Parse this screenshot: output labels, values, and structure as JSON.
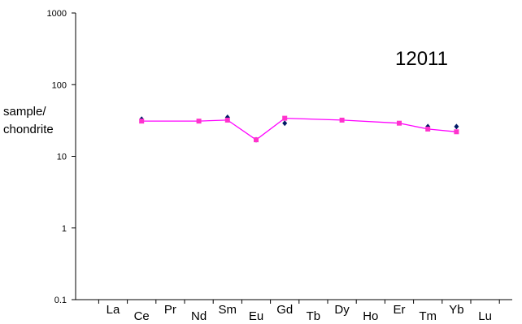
{
  "chart_data": {
    "type": "scatter",
    "title": "",
    "annotation": "12011",
    "ylabel_lines": [
      "sample/",
      "chondrite"
    ],
    "xlabel": "",
    "y_scale": "log",
    "ylim": [
      0.1,
      1000
    ],
    "y_ticks": [
      "1000",
      "100",
      "10",
      "1",
      "0.1"
    ],
    "categories": [
      "La",
      "Ce",
      "Pr",
      "Nd",
      "Sm",
      "Eu",
      "Gd",
      "Tb",
      "Dy",
      "Ho",
      "Er",
      "Tm",
      "Yb",
      "Lu"
    ],
    "grid": false,
    "colors": {
      "line": "#ff00ff",
      "square_marker": "#ff33cc",
      "diamond_marker": "#001a66",
      "axis": "#000000"
    },
    "series": [
      {
        "marker": "diamond",
        "points": [
          {
            "x": "Ce",
            "y": 33
          },
          {
            "x": "Sm",
            "y": 35
          },
          {
            "x": "Eu",
            "y": 17
          },
          {
            "x": "Gd",
            "y": 29
          },
          {
            "x": "Tm",
            "y": 26
          },
          {
            "x": "Yb",
            "y": 26
          }
        ]
      },
      {
        "marker": "square",
        "style": "line",
        "points": [
          {
            "x": "Ce",
            "y": 31
          },
          {
            "x": "Nd",
            "y": 31
          },
          {
            "x": "Sm",
            "y": 32
          },
          {
            "x": "Eu",
            "y": 17
          },
          {
            "x": "Gd",
            "y": 34
          },
          {
            "x": "Dy",
            "y": 32
          },
          {
            "x": "Er",
            "y": 29
          },
          {
            "x": "Tm",
            "y": 24
          },
          {
            "x": "Yb",
            "y": 22
          }
        ]
      }
    ]
  }
}
